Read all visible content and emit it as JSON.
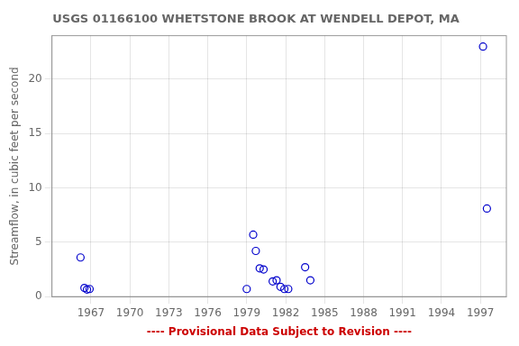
{
  "chart_data": {
    "type": "scatter",
    "title": "USGS 01166100 WHETSTONE BROOK AT WENDELL DEPOT, MA",
    "xlabel": "---- Provisional Data Subject to Revision ----",
    "ylabel": "Streamflow, in cubic feet per second",
    "x": [
      1966.2,
      1966.5,
      1966.7,
      1966.9,
      1979.0,
      1979.5,
      1979.7,
      1980.0,
      1980.3,
      1981.0,
      1981.3,
      1981.6,
      1981.9,
      1982.2,
      1983.5,
      1983.9,
      1997.2,
      1997.5
    ],
    "values": [
      3.6,
      0.8,
      0.65,
      0.7,
      0.7,
      5.7,
      4.2,
      2.6,
      2.5,
      1.4,
      1.5,
      0.9,
      0.7,
      0.7,
      2.7,
      1.5,
      23.0,
      8.1
    ],
    "color": "#0000CC",
    "marker": "circle",
    "xlim": [
      1964,
      1999
    ],
    "ylim": [
      0,
      24
    ],
    "xticks": [
      1967,
      1970,
      1973,
      1976,
      1979,
      1982,
      1985,
      1988,
      1991,
      1994,
      1997
    ],
    "yticks": [
      0,
      5,
      10,
      15,
      20
    ],
    "grid": true
  }
}
